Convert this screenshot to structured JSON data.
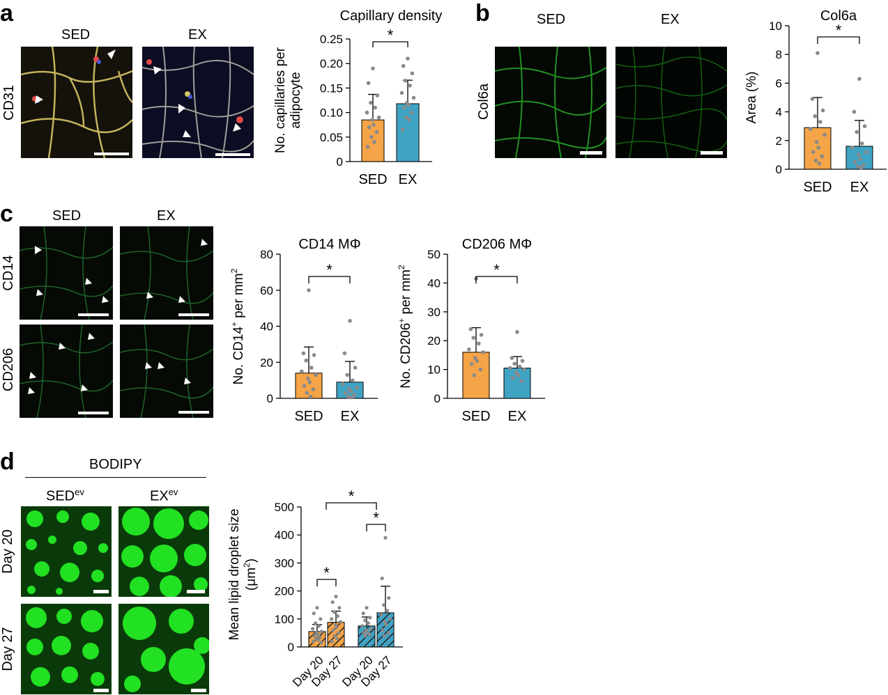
{
  "colors": {
    "sed": "#f5a447",
    "ex": "#3fa3c4",
    "dot": "#8a8a8a",
    "micro_green": "#19e019"
  },
  "panel_a": {
    "letter": "a",
    "img_titles": [
      "SED",
      "EX"
    ],
    "row_label": "CD31",
    "chart": {
      "type": "bar",
      "title": "Capillary density",
      "ylabel_lines": [
        "No. capillaries per",
        "adipocyte"
      ],
      "categories": [
        "SED",
        "EX"
      ],
      "values": [
        0.085,
        0.118
      ],
      "sd": [
        0.052,
        0.048
      ],
      "ylim": [
        0,
        0.25
      ],
      "yticks": [
        0,
        0.05,
        0.1,
        0.15,
        0.2,
        0.25
      ],
      "ytick_labels": [
        "0",
        "0.05",
        "0.10",
        "0.15",
        "0.20",
        "0.25"
      ],
      "sig": "*",
      "points": [
        [
          0.19,
          0.16,
          0.135,
          0.12,
          0.11,
          0.1,
          0.09,
          0.085,
          0.075,
          0.07,
          0.06,
          0.05,
          0.04,
          0.03
        ],
        [
          0.21,
          0.195,
          0.18,
          0.165,
          0.155,
          0.14,
          0.13,
          0.12,
          0.115,
          0.11,
          0.1,
          0.09,
          0.085,
          0.065
        ]
      ]
    }
  },
  "panel_b": {
    "letter": "b",
    "img_titles": [
      "SED",
      "EX"
    ],
    "row_label": "Col6a",
    "chart": {
      "type": "bar",
      "title": "Col6a",
      "ylabel": "Area (%)",
      "categories": [
        "SED",
        "EX"
      ],
      "values": [
        2.9,
        1.6
      ],
      "sd": [
        2.1,
        1.8
      ],
      "ylim": [
        0,
        10
      ],
      "yticks": [
        0,
        2,
        4,
        6,
        8,
        10
      ],
      "ytick_labels": [
        "0",
        "2",
        "4",
        "6",
        "8",
        "10"
      ],
      "sig": "*",
      "points": [
        [
          8.1,
          4.9,
          4.1,
          3.7,
          3.3,
          2.8,
          2.4,
          1.9,
          1.5,
          1.2,
          0.9,
          0.6,
          0.4
        ],
        [
          6.3,
          4.0,
          3.0,
          2.6,
          1.8,
          1.5,
          1.2,
          1.0,
          0.7,
          0.5,
          0.3,
          0.2,
          0.1
        ]
      ]
    }
  },
  "panel_c": {
    "letter": "c",
    "img_titles": [
      "SED",
      "EX"
    ],
    "row_labels": [
      "CD14",
      "CD206"
    ],
    "charts": [
      {
        "type": "bar",
        "title": "CD14 MΦ",
        "ylabel_main": "No. CD14",
        "ylabel_sup": "+",
        "ylabel_tail": " per mm",
        "ylabel_tail_sup": "2",
        "categories": [
          "SED",
          "EX"
        ],
        "values": [
          14,
          9
        ],
        "sd": [
          14.5,
          11.5
        ],
        "ylim": [
          0,
          80
        ],
        "yticks": [
          0,
          20,
          40,
          60,
          80
        ],
        "ytick_labels": [
          "0",
          "20",
          "40",
          "60",
          "80"
        ],
        "sig": "*",
        "points": [
          [
            60,
            25,
            24,
            21,
            17,
            15,
            13,
            11,
            9,
            7,
            5,
            3,
            1
          ],
          [
            43,
            25,
            17,
            13,
            10,
            8,
            6,
            5,
            4,
            3,
            2,
            1,
            0.5
          ]
        ]
      },
      {
        "type": "bar",
        "title": "CD206 MΦ",
        "ylabel_main": "No. CD206",
        "ylabel_sup": "+",
        "ylabel_tail": " per mm",
        "ylabel_tail_sup": "2",
        "categories": [
          "SED",
          "EX"
        ],
        "values": [
          16,
          10.5
        ],
        "sd": [
          8.5,
          4
        ],
        "ylim": [
          0,
          50
        ],
        "yticks": [
          0,
          10,
          20,
          30,
          40,
          50
        ],
        "ytick_labels": [
          "0",
          "10",
          "20",
          "30",
          "40",
          "50"
        ],
        "sig": "*",
        "points": [
          [
            41.5,
            24,
            22,
            21,
            19,
            17,
            16,
            14,
            13,
            12,
            10,
            8
          ],
          [
            23,
            14,
            13,
            12,
            11,
            10.5,
            10,
            9,
            8,
            7,
            6
          ]
        ]
      }
    ]
  },
  "panel_d": {
    "letter": "d",
    "group_title": "BODIPY",
    "col_titles": [
      {
        "main": "SED",
        "sup": "ev"
      },
      {
        "main": "EX",
        "sup": "ev"
      }
    ],
    "row_labels": [
      "Day 20",
      "Day 27"
    ],
    "chart": {
      "type": "bar",
      "ylabel_lines": [
        "Mean lipid droplet size",
        "(μm",
        "2",
        ")"
      ],
      "categories": [
        "Day 20",
        "Day 27",
        "Day 20",
        "Day 27"
      ],
      "groups": [
        "sed",
        "sed",
        "ex",
        "ex"
      ],
      "values": [
        55,
        88,
        75,
        122
      ],
      "sd": [
        25,
        40,
        32,
        95
      ],
      "ylim": [
        0,
        500
      ],
      "yticks": [
        0,
        100,
        200,
        300,
        400,
        500
      ],
      "ytick_labels": [
        "0",
        "100",
        "200",
        "300",
        "400",
        "500"
      ],
      "sig_labels": [
        "*",
        "*",
        "*"
      ],
      "points": [
        [
          140,
          120,
          100,
          85,
          75,
          65,
          55,
          50,
          45,
          40,
          35,
          30,
          25,
          20,
          15
        ],
        [
          180,
          160,
          140,
          125,
          110,
          100,
          90,
          80,
          70,
          60,
          50,
          40,
          30,
          20
        ],
        [
          140,
          120,
          105,
          95,
          85,
          75,
          65,
          60,
          55,
          50,
          45,
          40
        ],
        [
          390,
          245,
          175,
          150,
          130,
          115,
          100,
          90,
          80,
          60,
          50,
          40
        ]
      ]
    }
  }
}
